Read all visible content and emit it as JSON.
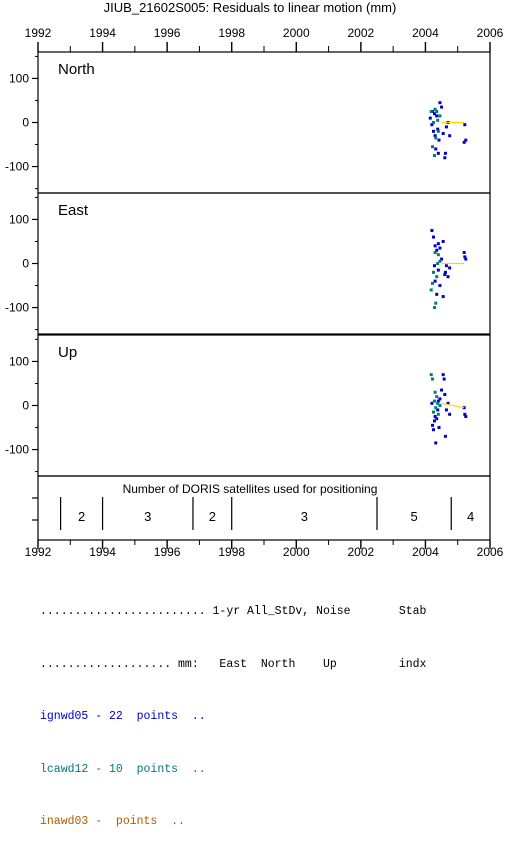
{
  "chart_data": {
    "type": "scatter",
    "title": "JIUB_21602S005: Residuals to linear motion (mm)",
    "x_ticks": [
      "1992",
      "1994",
      "1996",
      "1998",
      "2000",
      "2002",
      "2004",
      "2006"
    ],
    "xlim": [
      1992,
      2006
    ],
    "panels": [
      {
        "name": "North",
        "ylim": [
          -160,
          160
        ],
        "y_ticks": [
          "100",
          "0",
          "-100"
        ],
        "series": [
          {
            "name": "ignwd05",
            "color": "#0000cc",
            "points": [
              [
                2004.15,
                10
              ],
              [
                2004.2,
                -5
              ],
              [
                2004.22,
                25
              ],
              [
                2004.25,
                -20
              ],
              [
                2004.28,
                20
              ],
              [
                2004.3,
                -30
              ],
              [
                2004.32,
                -60
              ],
              [
                2004.35,
                15
              ],
              [
                2004.38,
                -15
              ],
              [
                2004.4,
                -70
              ],
              [
                2004.45,
                45
              ],
              [
                2004.5,
                35
              ],
              [
                2004.55,
                -25
              ],
              [
                2004.6,
                -80
              ],
              [
                2004.62,
                -70
              ],
              [
                2004.65,
                -10
              ],
              [
                2004.7,
                0
              ],
              [
                2004.75,
                -30
              ],
              [
                2005.2,
                -45
              ],
              [
                2005.22,
                -5
              ],
              [
                2005.25,
                -40
              ],
              [
                2004.42,
                -40
              ]
            ]
          },
          {
            "name": "lcawd12",
            "color": "#007a7a",
            "points": [
              [
                2004.18,
                25
              ],
              [
                2004.22,
                -55
              ],
              [
                2004.28,
                -75
              ],
              [
                2004.32,
                -35
              ],
              [
                2004.35,
                25
              ],
              [
                2004.4,
                -20
              ],
              [
                2004.45,
                15
              ],
              [
                2004.3,
                30
              ],
              [
                2004.25,
                0
              ],
              [
                2004.38,
                5
              ]
            ]
          }
        ],
        "trend": {
          "color": "#ffd400",
          "from": [
            2004.5,
            0
          ],
          "to": [
            2005.2,
            0
          ]
        }
      },
      {
        "name": "East",
        "ylim": [
          -160,
          160
        ],
        "y_ticks": [
          "100",
          "0",
          "-100"
        ],
        "series": [
          {
            "name": "ignwd05",
            "color": "#0000cc",
            "points": [
              [
                2004.2,
                75
              ],
              [
                2004.25,
                60
              ],
              [
                2004.3,
                40
              ],
              [
                2004.35,
                30
              ],
              [
                2004.4,
                45
              ],
              [
                2004.45,
                35
              ],
              [
                2004.5,
                10
              ],
              [
                2004.55,
                50
              ],
              [
                2004.6,
                -25
              ],
              [
                2004.62,
                -20
              ],
              [
                2004.65,
                -5
              ],
              [
                2004.7,
                -30
              ],
              [
                2004.75,
                -10
              ],
              [
                2004.3,
                -40
              ],
              [
                2004.35,
                -70
              ],
              [
                2004.4,
                -15
              ],
              [
                2004.45,
                -50
              ],
              [
                2004.55,
                -75
              ],
              [
                2005.2,
                25
              ],
              [
                2005.22,
                15
              ],
              [
                2005.25,
                10
              ],
              [
                2004.28,
                -5
              ]
            ]
          },
          {
            "name": "lcawd12",
            "color": "#007a7a",
            "points": [
              [
                2004.18,
                -60
              ],
              [
                2004.22,
                -45
              ],
              [
                2004.28,
                -100
              ],
              [
                2004.32,
                -90
              ],
              [
                2004.35,
                -30
              ],
              [
                2004.4,
                20
              ],
              [
                2004.45,
                5
              ],
              [
                2004.3,
                25
              ],
              [
                2004.25,
                -20
              ],
              [
                2004.38,
                0
              ]
            ]
          }
        ],
        "trend": {
          "color": "#ffd400",
          "from": [
            2004.5,
            0
          ],
          "to": [
            2005.2,
            0
          ]
        }
      },
      {
        "name": "Up",
        "ylim": [
          -160,
          160
        ],
        "y_ticks": [
          "100",
          "0",
          "-100"
        ],
        "series": [
          {
            "name": "ignwd05",
            "color": "#0000cc",
            "points": [
              [
                2004.2,
                5
              ],
              [
                2004.22,
                -45
              ],
              [
                2004.25,
                -55
              ],
              [
                2004.3,
                -25
              ],
              [
                2004.32,
                -85
              ],
              [
                2004.35,
                -30
              ],
              [
                2004.38,
                -10
              ],
              [
                2004.4,
                10
              ],
              [
                2004.45,
                15
              ],
              [
                2004.5,
                35
              ],
              [
                2004.55,
                70
              ],
              [
                2004.58,
                60
              ],
              [
                2004.6,
                25
              ],
              [
                2004.62,
                -70
              ],
              [
                2004.65,
                -10
              ],
              [
                2004.7,
                5
              ],
              [
                2004.75,
                -20
              ],
              [
                2005.2,
                -5
              ],
              [
                2005.22,
                -20
              ],
              [
                2005.25,
                -25
              ],
              [
                2004.28,
                -35
              ],
              [
                2004.42,
                -50
              ]
            ]
          },
          {
            "name": "lcawd12",
            "color": "#007a7a",
            "points": [
              [
                2004.18,
                70
              ],
              [
                2004.22,
                60
              ],
              [
                2004.28,
                10
              ],
              [
                2004.32,
                -5
              ],
              [
                2004.35,
                20
              ],
              [
                2004.4,
                -20
              ],
              [
                2004.45,
                0
              ],
              [
                2004.3,
                30
              ],
              [
                2004.25,
                -15
              ],
              [
                2004.38,
                5
              ]
            ]
          }
        ],
        "trend": {
          "color": "#ffd400",
          "from": [
            2004.5,
            5
          ],
          "to": [
            2005.2,
            -5
          ]
        }
      }
    ],
    "satellites": {
      "label": "Number of DORIS satellites used for positioning",
      "segments": [
        {
          "from": 1992.7,
          "to": 1994.0,
          "count": "2"
        },
        {
          "from": 1994.0,
          "to": 1996.8,
          "count": "3"
        },
        {
          "from": 1996.8,
          "to": 1998.0,
          "count": "2"
        },
        {
          "from": 1998.0,
          "to": 2002.5,
          "count": "3"
        },
        {
          "from": 2002.5,
          "to": 2004.8,
          "count": "5"
        },
        {
          "from": 2004.8,
          "to": 2006.0,
          "count": "4"
        }
      ]
    }
  },
  "legend": {
    "header1": "........................ 1-yr All_StDv, Noise       Stab",
    "header2": "................... mm:   East  North    Up         indx",
    "rows": [
      {
        "text": "ignwd05 - 22  points  ..",
        "color": "#0000cc"
      },
      {
        "text": "lcawd12 - 10  points  ..",
        "color": "#007a7a"
      },
      {
        "text": "inawd03 -  points  ..",
        "color": "#b35a00"
      }
    ]
  }
}
